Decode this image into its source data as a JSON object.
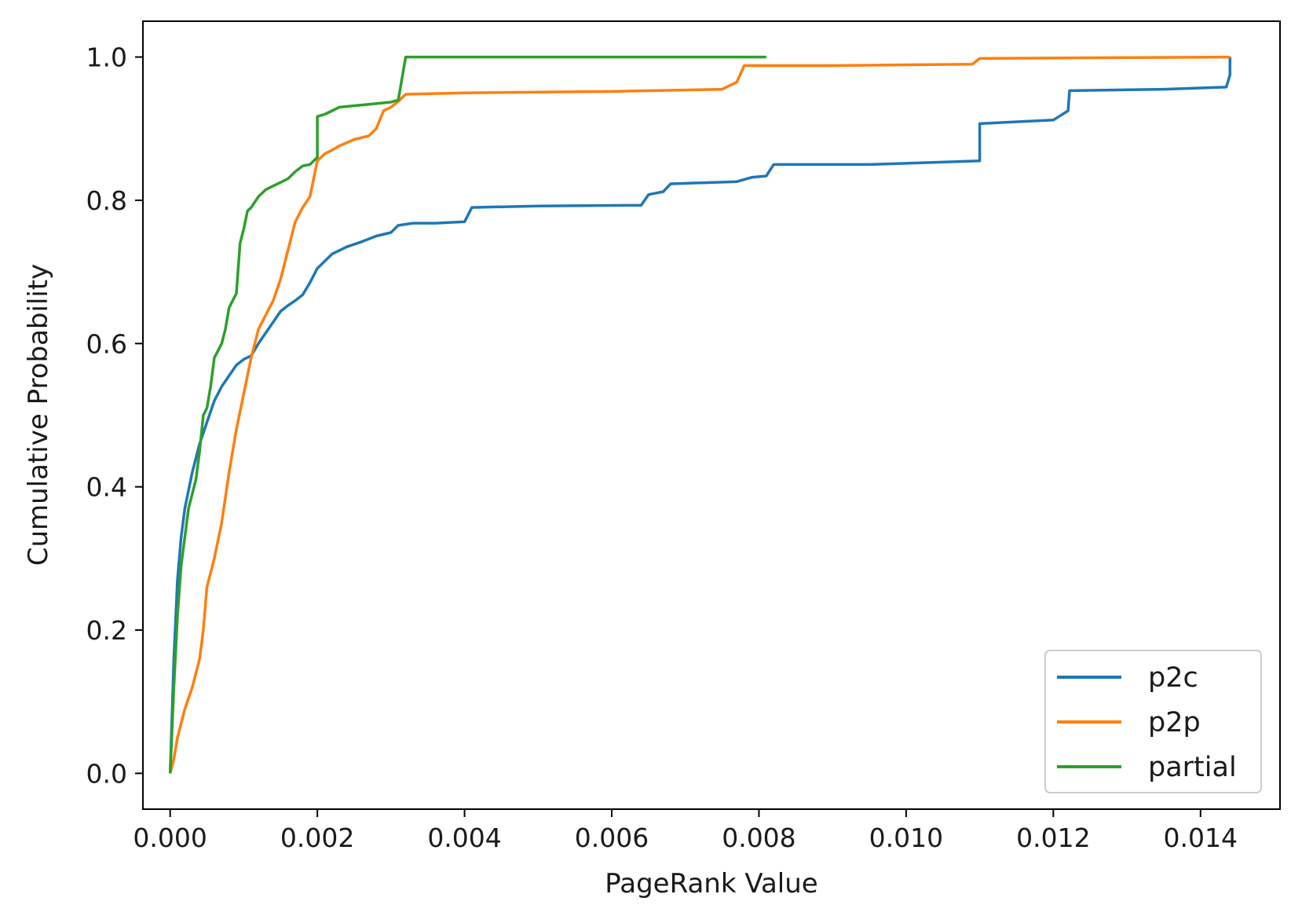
{
  "chart_data": {
    "type": "line",
    "title": "",
    "xlabel": "PageRank Value",
    "ylabel": "Cumulative Probability",
    "xlim": [
      -0.00037,
      0.01508
    ],
    "ylim": [
      -0.05,
      1.05
    ],
    "xticks": [
      0.0,
      0.002,
      0.004,
      0.006,
      0.008,
      0.01,
      0.012,
      0.014
    ],
    "xtick_labels": [
      "0.000",
      "0.002",
      "0.004",
      "0.006",
      "0.008",
      "0.010",
      "0.012",
      "0.014"
    ],
    "yticks": [
      0.0,
      0.2,
      0.4,
      0.6,
      0.8,
      1.0
    ],
    "ytick_labels": [
      "0.0",
      "0.2",
      "0.4",
      "0.6",
      "0.8",
      "1.0"
    ],
    "grid": false,
    "legend_position": "lower-right",
    "series": [
      {
        "name": "p2c",
        "color": "#1f77b4",
        "points": [
          [
            0.0,
            0.0
          ],
          [
            5e-05,
            0.16
          ],
          [
            0.0001,
            0.27
          ],
          [
            0.00015,
            0.33
          ],
          [
            0.0002,
            0.37
          ],
          [
            0.0003,
            0.42
          ],
          [
            0.0004,
            0.46
          ],
          [
            0.0005,
            0.49
          ],
          [
            0.0006,
            0.52
          ],
          [
            0.0007,
            0.54
          ],
          [
            0.0008,
            0.555
          ],
          [
            0.0009,
            0.57
          ],
          [
            0.001,
            0.578
          ],
          [
            0.0011,
            0.583
          ],
          [
            0.0012,
            0.6
          ],
          [
            0.0013,
            0.615
          ],
          [
            0.0014,
            0.63
          ],
          [
            0.0015,
            0.645
          ],
          [
            0.0016,
            0.653
          ],
          [
            0.0017,
            0.66
          ],
          [
            0.0018,
            0.668
          ],
          [
            0.0019,
            0.685
          ],
          [
            0.002,
            0.705
          ],
          [
            0.0021,
            0.715
          ],
          [
            0.0022,
            0.725
          ],
          [
            0.0024,
            0.735
          ],
          [
            0.0026,
            0.742
          ],
          [
            0.0028,
            0.75
          ],
          [
            0.003,
            0.755
          ],
          [
            0.0031,
            0.765
          ],
          [
            0.0033,
            0.768
          ],
          [
            0.0036,
            0.768
          ],
          [
            0.004,
            0.77
          ],
          [
            0.0041,
            0.79
          ],
          [
            0.005,
            0.792
          ],
          [
            0.0064,
            0.793
          ],
          [
            0.0065,
            0.808
          ],
          [
            0.0067,
            0.812
          ],
          [
            0.0068,
            0.823
          ],
          [
            0.0077,
            0.826
          ],
          [
            0.0079,
            0.832
          ],
          [
            0.0081,
            0.834
          ],
          [
            0.0082,
            0.85
          ],
          [
            0.0095,
            0.85
          ],
          [
            0.011,
            0.855
          ],
          [
            0.011,
            0.907
          ],
          [
            0.012,
            0.912
          ],
          [
            0.0122,
            0.925
          ],
          [
            0.01222,
            0.953
          ],
          [
            0.0135,
            0.955
          ],
          [
            0.01435,
            0.958
          ],
          [
            0.0144,
            0.975
          ],
          [
            0.0144,
            1.0
          ]
        ]
      },
      {
        "name": "p2p",
        "color": "#ff7f0e",
        "points": [
          [
            0.0,
            0.0
          ],
          [
            5e-05,
            0.02
          ],
          [
            0.0001,
            0.05
          ],
          [
            0.0002,
            0.09
          ],
          [
            0.0003,
            0.12
          ],
          [
            0.0004,
            0.16
          ],
          [
            0.00045,
            0.2
          ],
          [
            0.0005,
            0.26
          ],
          [
            0.0006,
            0.3
          ],
          [
            0.0007,
            0.35
          ],
          [
            0.0008,
            0.42
          ],
          [
            0.0009,
            0.48
          ],
          [
            0.001,
            0.53
          ],
          [
            0.0011,
            0.58
          ],
          [
            0.0012,
            0.62
          ],
          [
            0.0013,
            0.64
          ],
          [
            0.0014,
            0.66
          ],
          [
            0.0015,
            0.69
          ],
          [
            0.0016,
            0.73
          ],
          [
            0.0017,
            0.77
          ],
          [
            0.0018,
            0.79
          ],
          [
            0.0019,
            0.805
          ],
          [
            0.002,
            0.855
          ],
          [
            0.0021,
            0.865
          ],
          [
            0.0022,
            0.87
          ],
          [
            0.0023,
            0.876
          ],
          [
            0.0025,
            0.885
          ],
          [
            0.0027,
            0.89
          ],
          [
            0.0028,
            0.9
          ],
          [
            0.0029,
            0.925
          ],
          [
            0.003,
            0.93
          ],
          [
            0.0031,
            0.938
          ],
          [
            0.0032,
            0.948
          ],
          [
            0.004,
            0.95
          ],
          [
            0.006,
            0.952
          ],
          [
            0.0075,
            0.955
          ],
          [
            0.0077,
            0.965
          ],
          [
            0.0078,
            0.988
          ],
          [
            0.009,
            0.988
          ],
          [
            0.0109,
            0.99
          ],
          [
            0.011,
            0.998
          ],
          [
            0.0144,
            1.0
          ]
        ]
      },
      {
        "name": "partial",
        "color": "#2ca02c",
        "points": [
          [
            0.0,
            0.0
          ],
          [
            5e-05,
            0.12
          ],
          [
            0.0001,
            0.22
          ],
          [
            0.00015,
            0.29
          ],
          [
            0.0002,
            0.33
          ],
          [
            0.00025,
            0.37
          ],
          [
            0.0003,
            0.39
          ],
          [
            0.00035,
            0.41
          ],
          [
            0.0004,
            0.45
          ],
          [
            0.00045,
            0.5
          ],
          [
            0.0005,
            0.51
          ],
          [
            0.00055,
            0.54
          ],
          [
            0.0006,
            0.58
          ],
          [
            0.0007,
            0.6
          ],
          [
            0.00075,
            0.62
          ],
          [
            0.0008,
            0.65
          ],
          [
            0.0009,
            0.67
          ],
          [
            0.00095,
            0.74
          ],
          [
            0.001,
            0.76
          ],
          [
            0.00105,
            0.785
          ],
          [
            0.0011,
            0.79
          ],
          [
            0.0012,
            0.805
          ],
          [
            0.0013,
            0.815
          ],
          [
            0.0014,
            0.82
          ],
          [
            0.0015,
            0.825
          ],
          [
            0.0016,
            0.83
          ],
          [
            0.0017,
            0.84
          ],
          [
            0.0018,
            0.848
          ],
          [
            0.0019,
            0.85
          ],
          [
            0.002,
            0.86
          ],
          [
            0.002,
            0.917
          ],
          [
            0.0021,
            0.92
          ],
          [
            0.0022,
            0.925
          ],
          [
            0.0023,
            0.93
          ],
          [
            0.0025,
            0.932
          ],
          [
            0.0028,
            0.935
          ],
          [
            0.003,
            0.937
          ],
          [
            0.0031,
            0.94
          ],
          [
            0.0032,
            1.0
          ],
          [
            0.0081,
            1.0
          ]
        ]
      }
    ]
  }
}
